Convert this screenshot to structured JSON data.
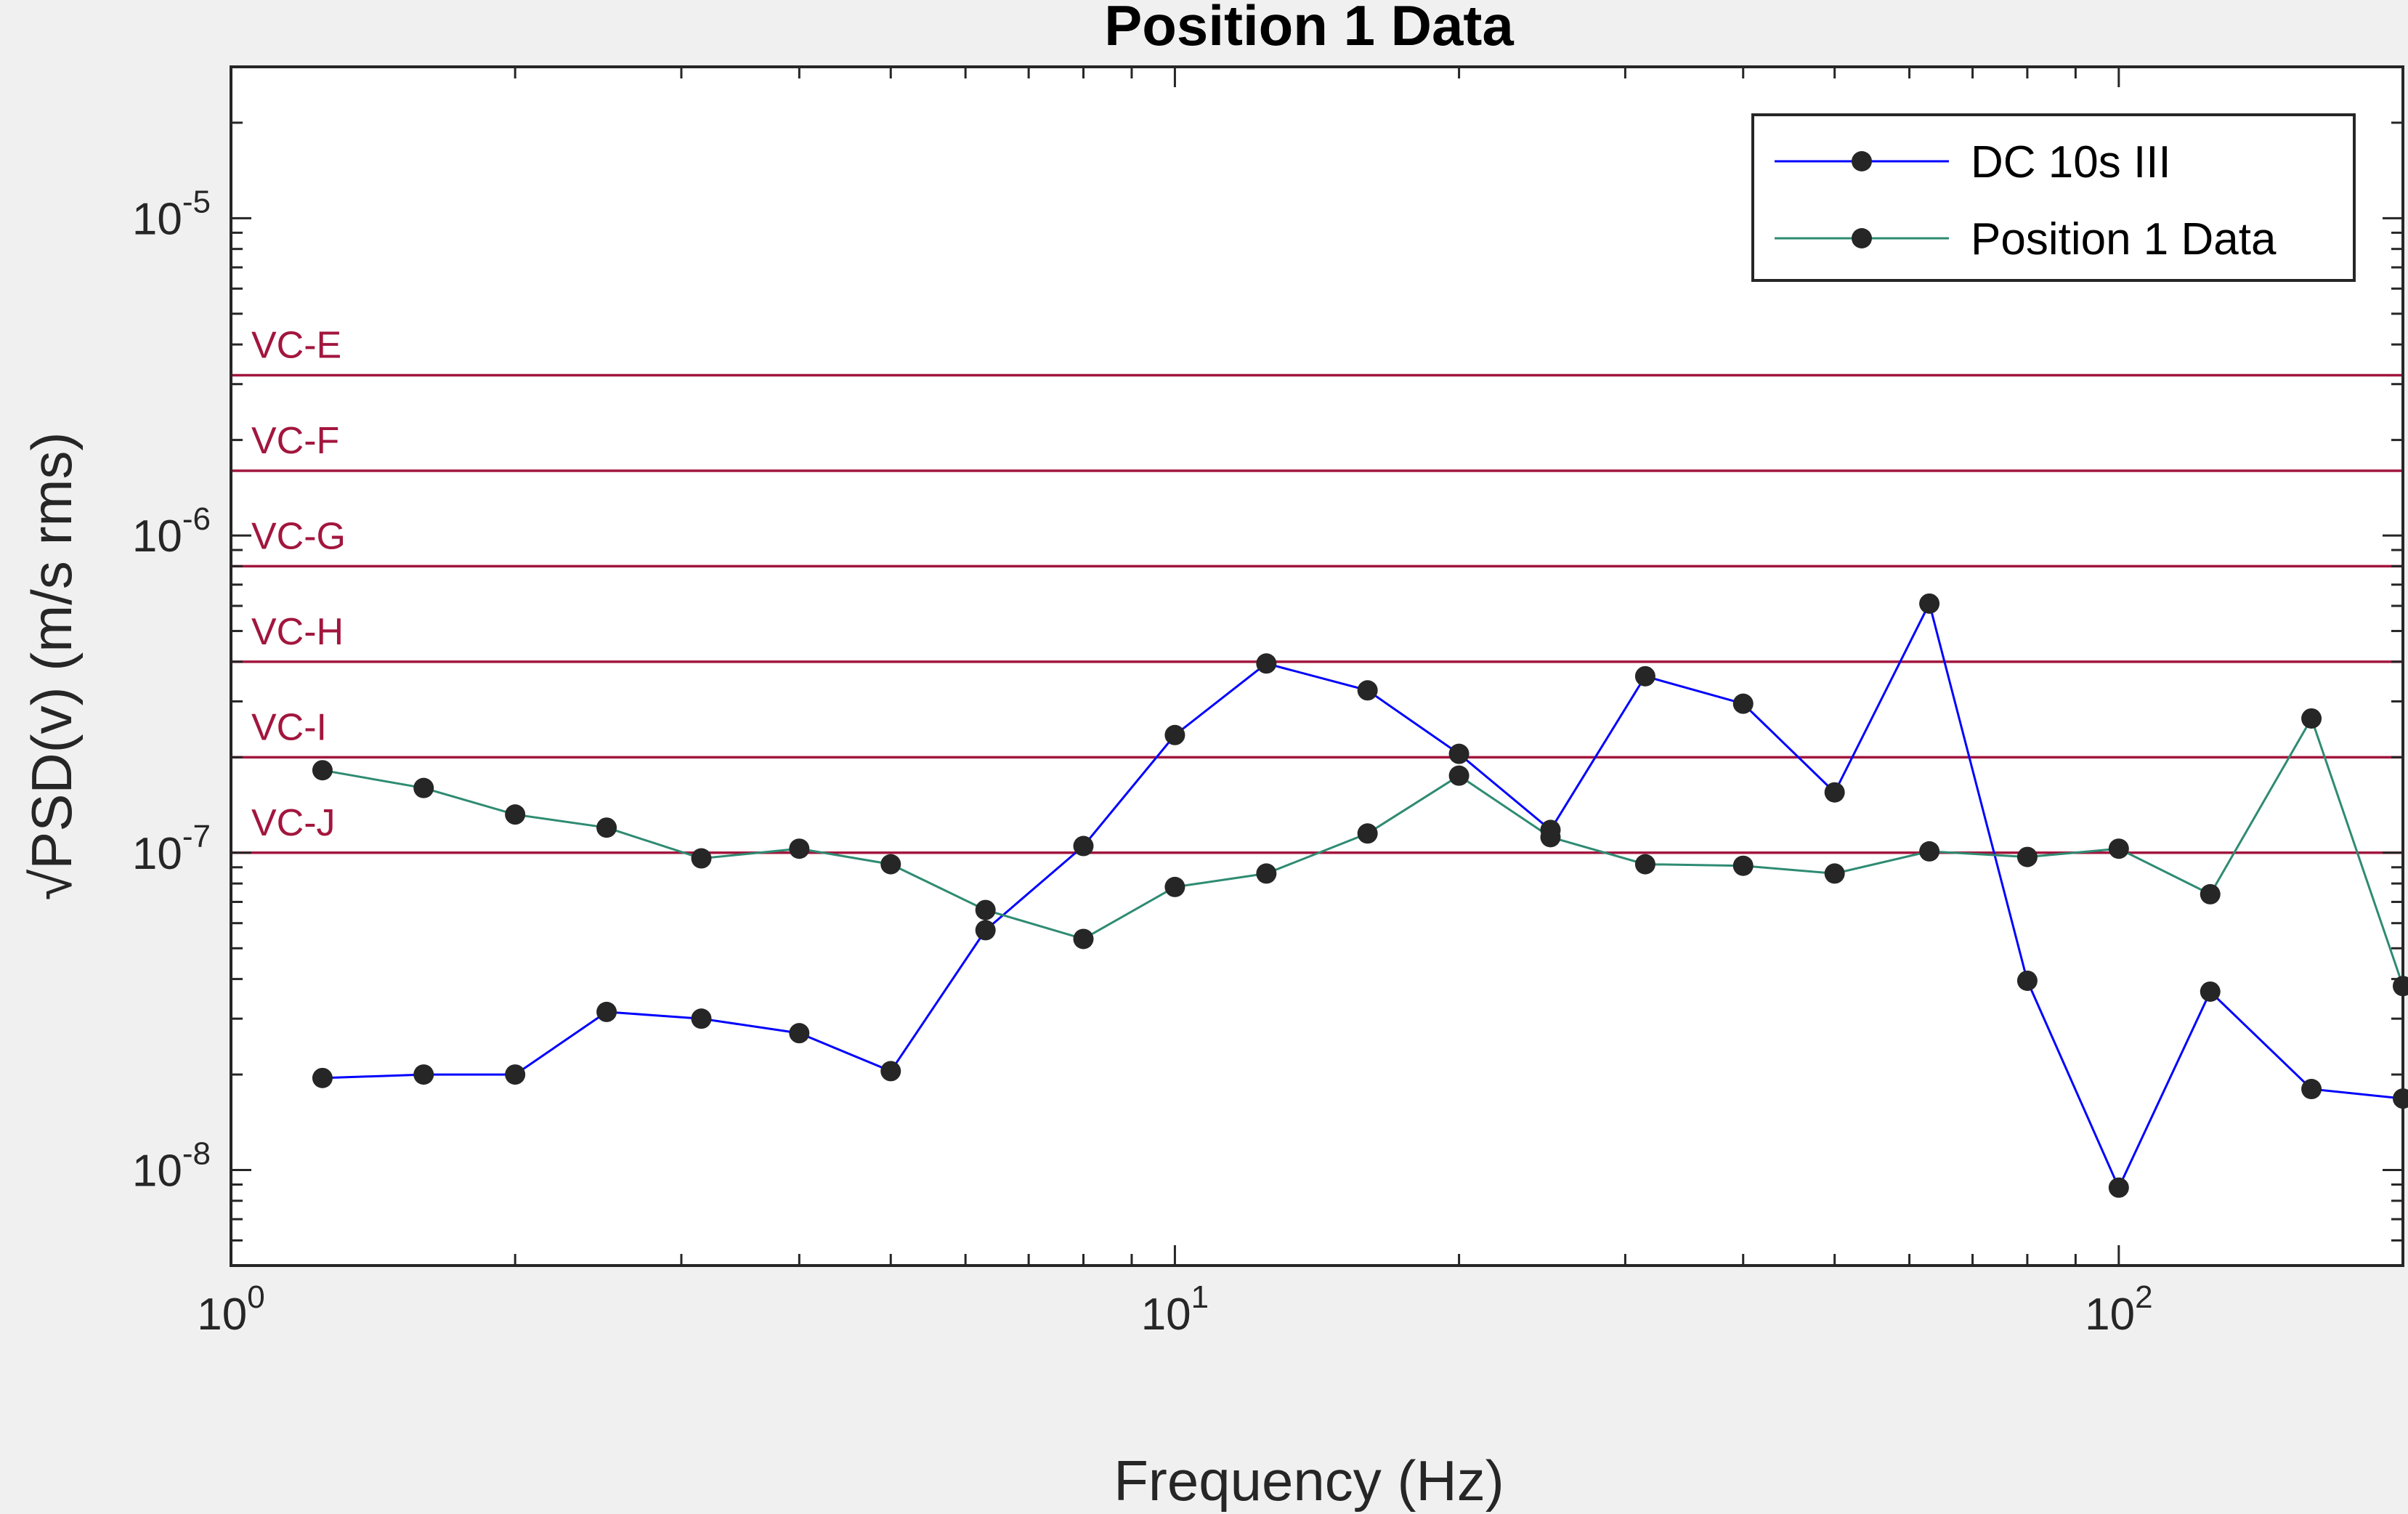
{
  "chart_data": {
    "type": "line",
    "title": "Position 1 Data",
    "xlabel": "Frequency (Hz)",
    "ylabel": "√PSD(v) (m/s rms)",
    "xscale": "log",
    "yscale": "log",
    "xlim": [
      1,
      200
    ],
    "ylim": [
      5e-09,
      3e-05
    ],
    "grid": false,
    "legend_position": "top-right",
    "x_ticks": [
      {
        "base": "10",
        "exp": "0"
      },
      {
        "base": "10",
        "exp": "1"
      },
      {
        "base": "10",
        "exp": "2"
      }
    ],
    "y_ticks": [
      {
        "base": "10",
        "exp": "-8"
      },
      {
        "base": "10",
        "exp": "-7"
      },
      {
        "base": "10",
        "exp": "-6"
      },
      {
        "base": "10",
        "exp": "-5"
      }
    ],
    "x": [
      1.25,
      1.6,
      2,
      2.5,
      3.15,
      4,
      5,
      6.3,
      8,
      10,
      12.5,
      16,
      20,
      25,
      31.5,
      40,
      50,
      63,
      80,
      100,
      125,
      160,
      200
    ],
    "series": [
      {
        "name": "DC 10s III",
        "color": "#0000ff",
        "values": [
          1.95e-08,
          2e-08,
          2e-08,
          3.15e-08,
          3e-08,
          2.7e-08,
          2.05e-08,
          5.7e-08,
          1.05e-07,
          2.35e-07,
          3.95e-07,
          3.25e-07,
          2.05e-07,
          1.18e-07,
          3.6e-07,
          2.95e-07,
          1.55e-07,
          6.1e-07,
          3.95e-08,
          8.8e-09,
          3.65e-08,
          1.8e-08,
          1.68e-08
        ]
      },
      {
        "name": "Position 1 Data",
        "color": "#2e8b72",
        "values": [
          1.82e-07,
          1.6e-07,
          1.32e-07,
          1.2e-07,
          9.6e-08,
          1.03e-07,
          9.2e-08,
          6.6e-08,
          5.35e-08,
          7.8e-08,
          8.6e-08,
          1.15e-07,
          1.75e-07,
          1.12e-07,
          9.2e-08,
          9.1e-08,
          8.6e-08,
          1.01e-07,
          9.7e-08,
          1.03e-07,
          7.4e-08,
          2.65e-07,
          3.8e-08
        ]
      }
    ],
    "reference_lines": [
      {
        "label": "VC-E",
        "value": 3.2e-06,
        "color": "#a2163e"
      },
      {
        "label": "VC-F",
        "value": 1.6e-06,
        "color": "#a2163e"
      },
      {
        "label": "VC-G",
        "value": 8e-07,
        "color": "#a2163e"
      },
      {
        "label": "VC-H",
        "value": 4e-07,
        "color": "#a2163e"
      },
      {
        "label": "VC-I",
        "value": 2e-07,
        "color": "#a2163e"
      },
      {
        "label": "VC-J",
        "value": 1e-07,
        "color": "#a2163e"
      }
    ],
    "marker_color": "#262626"
  }
}
